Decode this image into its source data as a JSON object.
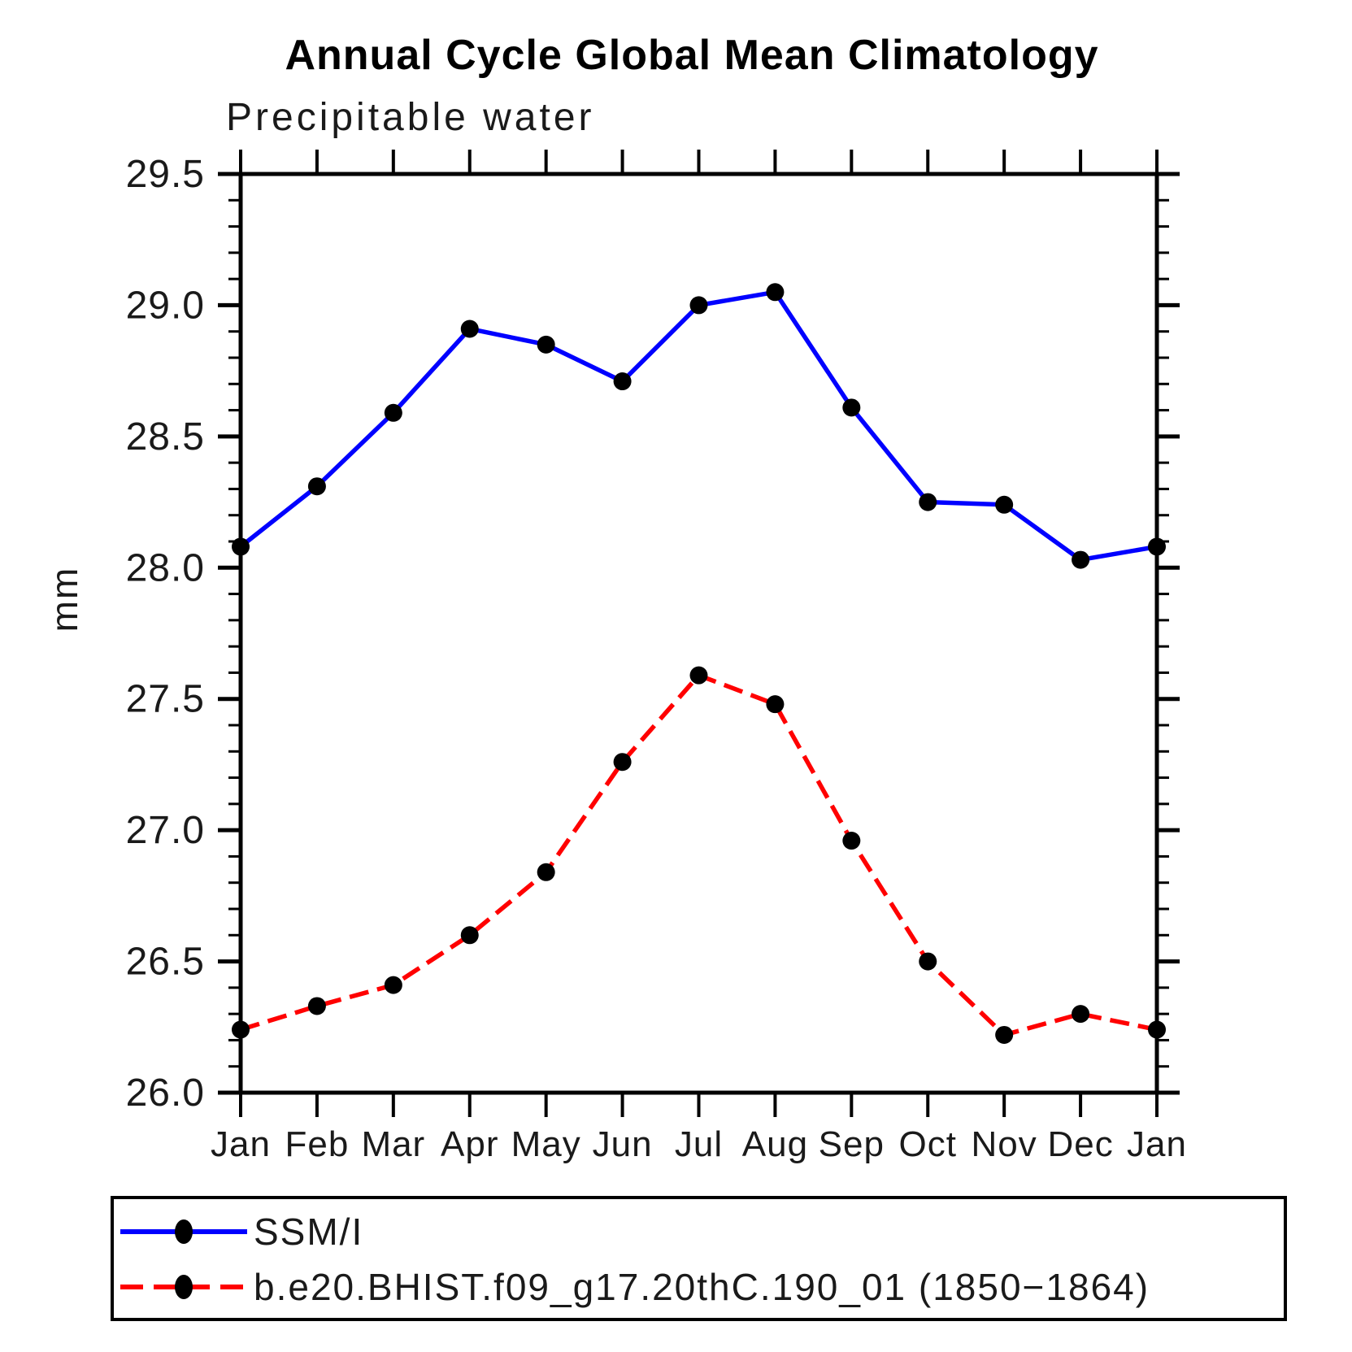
{
  "page": {
    "background": "#ffffff"
  },
  "chart_data": {
    "type": "line",
    "title": "Annual Cycle Global Mean Climatology",
    "subtitle": "Precipitable water",
    "ylabel": "mm",
    "xlabel": "",
    "categories": [
      "Jan",
      "Feb",
      "Mar",
      "Apr",
      "May",
      "Jun",
      "Jul",
      "Aug",
      "Sep",
      "Oct",
      "Nov",
      "Dec",
      "Jan"
    ],
    "ylim": [
      26.0,
      29.5
    ],
    "ytick_step": 0.5,
    "ytick_minor_step": 0.1,
    "ytick_labels": [
      "26.0",
      "26.5",
      "27.0",
      "27.5",
      "28.0",
      "28.5",
      "29.0",
      "29.5"
    ],
    "grid": false,
    "frame": "box-with-outward-ticks",
    "legend_position": "bottom-left-boxed",
    "colors": {
      "axis": "#000000",
      "series1": "#0000ff",
      "series2": "#ff0000",
      "marker": "#000000"
    },
    "series": [
      {
        "name": "SSM/I",
        "color": "#0000ff",
        "line_style": "solid",
        "marker": "filled-circle",
        "marker_color": "#000000",
        "values": [
          28.08,
          28.31,
          28.59,
          28.91,
          28.85,
          28.71,
          29.0,
          29.05,
          28.61,
          28.25,
          28.24,
          28.03,
          28.08
        ]
      },
      {
        "name": "b.e20.BHIST.f09_g17.20thC.190_01 (1850−1864)",
        "color": "#ff0000",
        "line_style": "dashed",
        "marker": "filled-circle",
        "marker_color": "#000000",
        "values": [
          26.24,
          26.33,
          26.41,
          26.6,
          26.84,
          27.26,
          27.59,
          27.48,
          26.96,
          26.5,
          26.22,
          26.3,
          26.24
        ]
      }
    ]
  }
}
